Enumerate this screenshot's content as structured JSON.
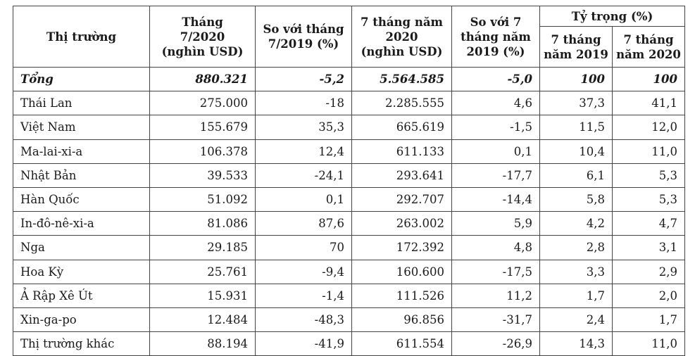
{
  "table": {
    "headers": {
      "market": "Thị trường",
      "month_value": [
        "Tháng",
        "7/2020",
        "(nghìn USD)"
      ],
      "month_change": [
        "So với tháng",
        "7/2019 (%)"
      ],
      "ytd_value": [
        "7 tháng năm",
        "2020",
        "(nghìn USD)"
      ],
      "ytd_change": [
        "So với 7",
        "tháng năm",
        "2019 (%)"
      ],
      "share_group": "Tỷ trọng (%)",
      "share_2019": [
        "7 tháng",
        "năm 2019"
      ],
      "share_2020": [
        "7 tháng",
        "năm 2020"
      ]
    },
    "rows": [
      {
        "market": "Tổng",
        "month_value": "880.321",
        "month_change": "-5,2",
        "ytd_value": "5.564.585",
        "ytd_change": "-5,0",
        "share_2019": "100",
        "share_2020": "100"
      },
      {
        "market": "Thái Lan",
        "month_value": "275.000",
        "month_change": "-18",
        "ytd_value": "2.285.555",
        "ytd_change": "4,6",
        "share_2019": "37,3",
        "share_2020": "41,1"
      },
      {
        "market": "Việt Nam",
        "month_value": "155.679",
        "month_change": "35,3",
        "ytd_value": "665.619",
        "ytd_change": "-1,5",
        "share_2019": "11,5",
        "share_2020": "12,0"
      },
      {
        "market": "Ma-lai-xi-a",
        "month_value": "106.378",
        "month_change": "12,4",
        "ytd_value": "611.133",
        "ytd_change": "0,1",
        "share_2019": "10,4",
        "share_2020": "11,0"
      },
      {
        "market": "Nhật Bản",
        "month_value": "39.533",
        "month_change": "-24,1",
        "ytd_value": "293.641",
        "ytd_change": "-17,7",
        "share_2019": "6,1",
        "share_2020": "5,3"
      },
      {
        "market": "Hàn Quốc",
        "month_value": "51.092",
        "month_change": "0,1",
        "ytd_value": "292.707",
        "ytd_change": "-14,4",
        "share_2019": "5,8",
        "share_2020": "5,3"
      },
      {
        "market": "In-đô-nê-xi-a",
        "month_value": "81.086",
        "month_change": "87,6",
        "ytd_value": "263.002",
        "ytd_change": "5,9",
        "share_2019": "4,2",
        "share_2020": "4,7"
      },
      {
        "market": "Nga",
        "month_value": "29.185",
        "month_change": "70",
        "ytd_value": "172.392",
        "ytd_change": "4,8",
        "share_2019": "2,8",
        "share_2020": "3,1"
      },
      {
        "market": "Hoa Kỳ",
        "month_value": "25.761",
        "month_change": "-9,4",
        "ytd_value": "160.600",
        "ytd_change": "-17,5",
        "share_2019": "3,3",
        "share_2020": "2,9"
      },
      {
        "market": "Ả Rập Xê Út",
        "month_value": "15.931",
        "month_change": "-1,4",
        "ytd_value": "111.526",
        "ytd_change": "11,2",
        "share_2019": "1,7",
        "share_2020": "2,0"
      },
      {
        "market": "Xin-ga-po",
        "month_value": "12.484",
        "month_change": "-48,3",
        "ytd_value": "96.856",
        "ytd_change": "-31,7",
        "share_2019": "2,4",
        "share_2020": "1,7"
      },
      {
        "market": "Thị trường khác",
        "month_value": "88.194",
        "month_change": "-41,9",
        "ytd_value": "611.554",
        "ytd_change": "-26,9",
        "share_2019": "14,3",
        "share_2020": "11,0"
      }
    ]
  }
}
